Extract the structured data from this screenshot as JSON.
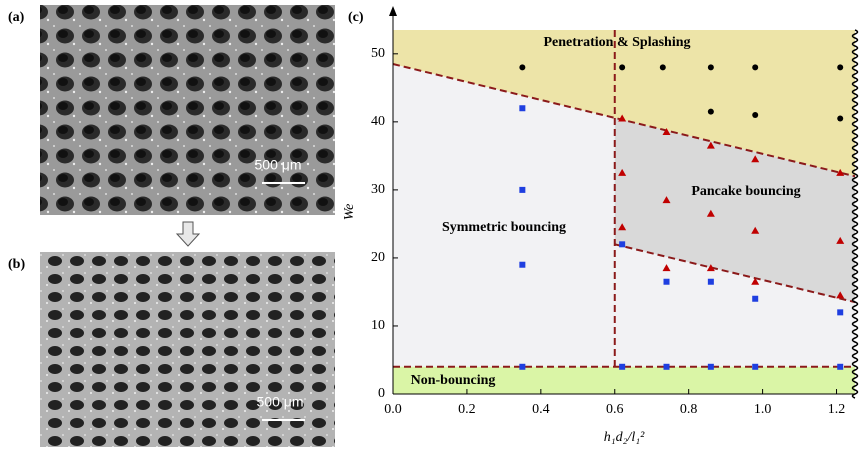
{
  "panels": [
    {
      "label": "(a)",
      "scale_bar": "500 μm"
    },
    {
      "label": "(b)",
      "scale_bar": "500 μm"
    }
  ],
  "chart_data": {
    "type": "scatter",
    "panel_label": "(c)",
    "x_label": "h₁d₂/l₁²",
    "y_label": "We",
    "xlim": [
      0,
      1.25
    ],
    "ylim": [
      0,
      53.5
    ],
    "xticks": [
      {
        "value": 0,
        "label": "0.0"
      },
      0.2,
      0.4,
      0.6,
      0.8,
      {
        "value": 1,
        "label": "1.0"
      },
      1.2
    ],
    "yticks": [
      0,
      10,
      20,
      30,
      40,
      50
    ],
    "annotations": [
      "Penetration & Splashing",
      "Pancake bouncing",
      "Symmetric bouncing",
      "Non-bouncing"
    ],
    "upper_boundary": {
      "x": [
        0,
        1.25
      ],
      "y": [
        48.5,
        32
      ]
    },
    "lower_boundary": {
      "x": [
        0.6,
        1.25
      ],
      "y": [
        22,
        13.5
      ]
    },
    "vertical_boundary": 0.6,
    "bottom_boundary": 4,
    "region_colors": [
      "#ede4a8",
      "#d9d9d9",
      "#f2f2f4",
      "#daf5a6"
    ],
    "series": [
      {
        "marker": "circle",
        "color": "#000000",
        "x": [
          0.35,
          0.62,
          0.73,
          0.86,
          0.86,
          0.98,
          0.98,
          1.21,
          1.21
        ],
        "values": [
          48,
          48,
          48,
          48,
          41.5,
          48,
          41,
          48,
          40.5
        ]
      },
      {
        "marker": "triangle",
        "color": "#c00000",
        "x": [
          0.62,
          0.62,
          0.62,
          0.74,
          0.74,
          0.74,
          0.86,
          0.86,
          0.86,
          0.98,
          0.98,
          0.98,
          1.21,
          1.21,
          1.21
        ],
        "values": [
          40.5,
          32.5,
          24.5,
          38.5,
          28.5,
          18.5,
          36.5,
          26.5,
          18.5,
          34.5,
          24,
          16.5,
          32.5,
          22.5,
          14.5
        ]
      },
      {
        "marker": "square",
        "color": "#1f3fe0",
        "x": [
          0.35,
          0.35,
          0.35,
          0.35,
          0.62,
          0.62,
          0.74,
          0.74,
          0.86,
          0.86,
          0.98,
          0.98,
          1.21,
          1.21
        ],
        "values": [
          42,
          30,
          19,
          4,
          22,
          4,
          16.5,
          4,
          16.5,
          4,
          14,
          4,
          12,
          4
        ]
      }
    ]
  }
}
